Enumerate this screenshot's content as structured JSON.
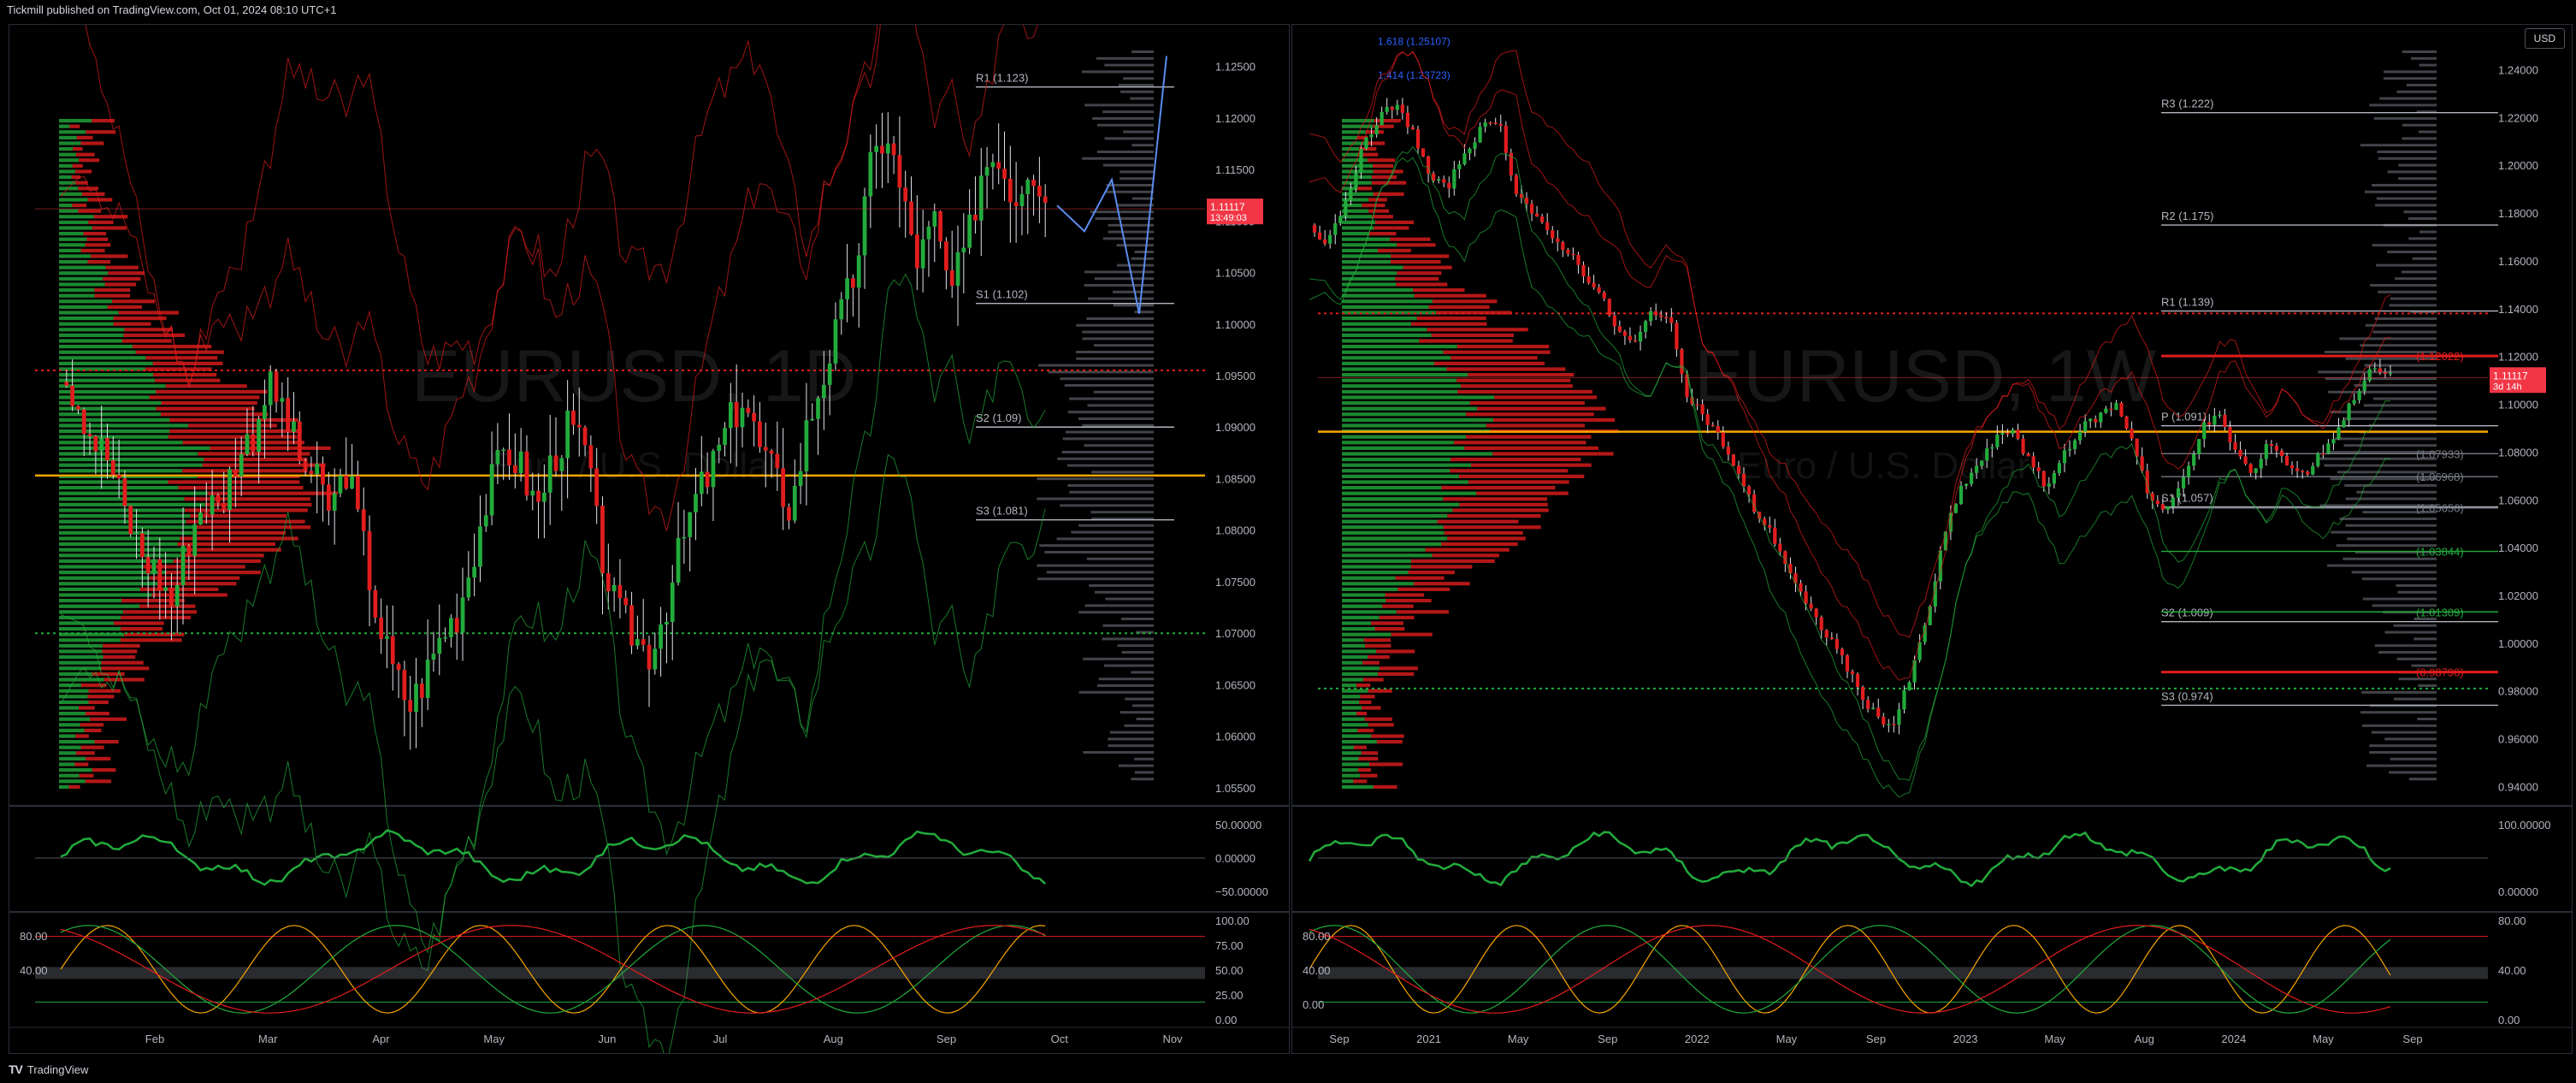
{
  "header": {
    "published": "Tickmill published on TradingView.com, Oct 01, 2024 08:10 UTC+1"
  },
  "footer": {
    "brand": "TradingView",
    "brand_mark": "TV"
  },
  "colors": {
    "up": "#22ab3c",
    "down": "#e11d1d",
    "bg": "#000000",
    "grid": "#1a1a1a",
    "axis_text": "#b2b5be",
    "orange_level": "#f7a600",
    "price_tag": "#f23645"
  },
  "chart_data": [
    {
      "type": "candlestick",
      "panel": "left",
      "watermark_symbol": "EURUSD, 1D",
      "watermark_desc": "Euro / U.S. Dollar",
      "y_ticks": [
        "1.12500",
        "1.12000",
        "1.11500",
        "1.11000",
        "1.10500",
        "1.10000",
        "1.09500",
        "1.09000",
        "1.08500",
        "1.08000",
        "1.07500",
        "1.07000",
        "1.06500",
        "1.06000",
        "1.05500"
      ],
      "ylim": [
        1.0535,
        1.1282
      ],
      "x_ticks": [
        "Feb",
        "Mar",
        "Apr",
        "May",
        "Jun",
        "Jul",
        "Aug",
        "Sep",
        "Oct",
        "Nov"
      ],
      "last_price": "1.11117",
      "countdown": "13:49:03",
      "pivots": [
        {
          "label": "R1 (1.123)",
          "value": 1.123
        },
        {
          "label": "S1 (1.102)",
          "value": 1.102
        },
        {
          "label": "S2 (1.09)",
          "value": 1.09
        },
        {
          "label": "S3 (1.081)",
          "value": 1.081
        }
      ],
      "orange_level": 1.0853,
      "red_dotted_level": 1.0955,
      "green_dotted_level": 1.07,
      "projection": [
        [
          1.1115,
          0
        ],
        [
          1.109,
          1
        ],
        [
          1.114,
          2
        ],
        [
          1.101,
          3
        ],
        [
          1.126,
          4
        ]
      ],
      "close_path": [
        1.096,
        1.093,
        1.089,
        1.087,
        1.082,
        1.078,
        1.076,
        1.073,
        1.079,
        1.083,
        1.082,
        1.087,
        1.089,
        1.094,
        1.092,
        1.087,
        1.085,
        1.082,
        1.086,
        1.079,
        1.071,
        1.066,
        1.063,
        1.066,
        1.07,
        1.072,
        1.078,
        1.084,
        1.088,
        1.086,
        1.082,
        1.087,
        1.09,
        1.088,
        1.078,
        1.072,
        1.07,
        1.068,
        1.072,
        1.078,
        1.083,
        1.086,
        1.09,
        1.093,
        1.088,
        1.085,
        1.082,
        1.09,
        1.095,
        1.1,
        1.105,
        1.115,
        1.119,
        1.112,
        1.106,
        1.11,
        1.103,
        1.107,
        1.115,
        1.117,
        1.112,
        1.116,
        1.112
      ],
      "oscillator1": {
        "ticks": [
          "50.00000",
          "0.00000",
          "−50.00000"
        ]
      },
      "oscillator2": {
        "ticks_left": [
          "80.00",
          "40.00"
        ],
        "ticks_right": [
          "100.00",
          "75.00",
          "50.00",
          "25.00",
          "0.00"
        ]
      }
    },
    {
      "type": "candlestick",
      "panel": "right",
      "watermark_symbol": "EURUSD, 1W",
      "watermark_desc": "Euro / U.S. Dollar",
      "currency": "USD",
      "y_ticks": [
        "1.24000",
        "1.22000",
        "1.20000",
        "1.18000",
        "1.16000",
        "1.14000",
        "1.12000",
        "1.10000",
        "1.08000",
        "1.06000",
        "1.04000",
        "1.02000",
        "1.00000",
        "0.98000",
        "0.96000",
        "0.94000"
      ],
      "ylim": [
        0.933,
        1.2552
      ],
      "x_ticks": [
        "Sep",
        "2021",
        "May",
        "Sep",
        "2022",
        "May",
        "Sep",
        "2023",
        "May",
        "Aug",
        "2024",
        "May",
        "Sep"
      ],
      "last_price": "1.11117",
      "countdown": "3d 14h",
      "pivots": [
        {
          "label": "R3 (1.222)",
          "value": 1.222
        },
        {
          "label": "R2 (1.175)",
          "value": 1.175
        },
        {
          "label": "R1 (1.139)",
          "value": 1.139
        },
        {
          "label": "P (1.091)",
          "value": 1.091
        },
        {
          "label": "S1 (1.057)",
          "value": 1.057
        },
        {
          "label": "S2 (1.009)",
          "value": 1.009
        },
        {
          "label": "S3 (0.974)",
          "value": 0.974
        }
      ],
      "fib_labels": [
        {
          "label": "1.618 (1.25107)",
          "value": 1.251
        },
        {
          "label": "1.414 (1.23723)",
          "value": 1.237
        }
      ],
      "right_levels": [
        {
          "label": "(1.12022)",
          "value": 1.1202,
          "color": "#e11d1d"
        },
        {
          "label": "(1.07933)",
          "value": 1.0793,
          "color": "#787b86"
        },
        {
          "label": "(1.06968)",
          "value": 1.0697,
          "color": "#787b86"
        },
        {
          "label": "(1.05656)",
          "value": 1.0566,
          "color": "#787b86"
        },
        {
          "label": "(1.03844)",
          "value": 1.0384,
          "color": "#22ab3c"
        },
        {
          "label": "(1.01309)",
          "value": 1.0131,
          "color": "#22ab3c"
        },
        {
          "label": "(0.98790)",
          "value": 0.9879,
          "color": "#e11d1d"
        }
      ],
      "orange_level": 1.0885,
      "red_dotted_level": 1.138,
      "green_dotted_level": 0.981,
      "close_path": [
        1.175,
        1.168,
        1.183,
        1.205,
        1.22,
        1.225,
        1.215,
        1.195,
        1.19,
        1.205,
        1.215,
        1.22,
        1.19,
        1.18,
        1.17,
        1.165,
        1.155,
        1.145,
        1.13,
        1.125,
        1.14,
        1.135,
        1.105,
        1.095,
        1.085,
        1.07,
        1.055,
        1.045,
        1.03,
        1.015,
        1.005,
        0.995,
        0.98,
        0.97,
        0.965,
        0.985,
        1.01,
        1.045,
        1.065,
        1.075,
        1.085,
        1.09,
        1.075,
        1.065,
        1.08,
        1.09,
        1.095,
        1.1,
        1.085,
        1.06,
        1.055,
        1.07,
        1.09,
        1.095,
        1.08,
        1.07,
        1.085,
        1.075,
        1.07,
        1.08,
        1.09,
        1.105,
        1.115,
        1.1112
      ],
      "oscillator1": {
        "ticks": [
          "100.00000",
          "0.00000"
        ]
      },
      "oscillator2": {
        "ticks_left": [
          "80.00",
          "40.00",
          "0.00"
        ],
        "ticks_right": [
          "80.00",
          "40.00",
          "0.00"
        ]
      }
    }
  ]
}
